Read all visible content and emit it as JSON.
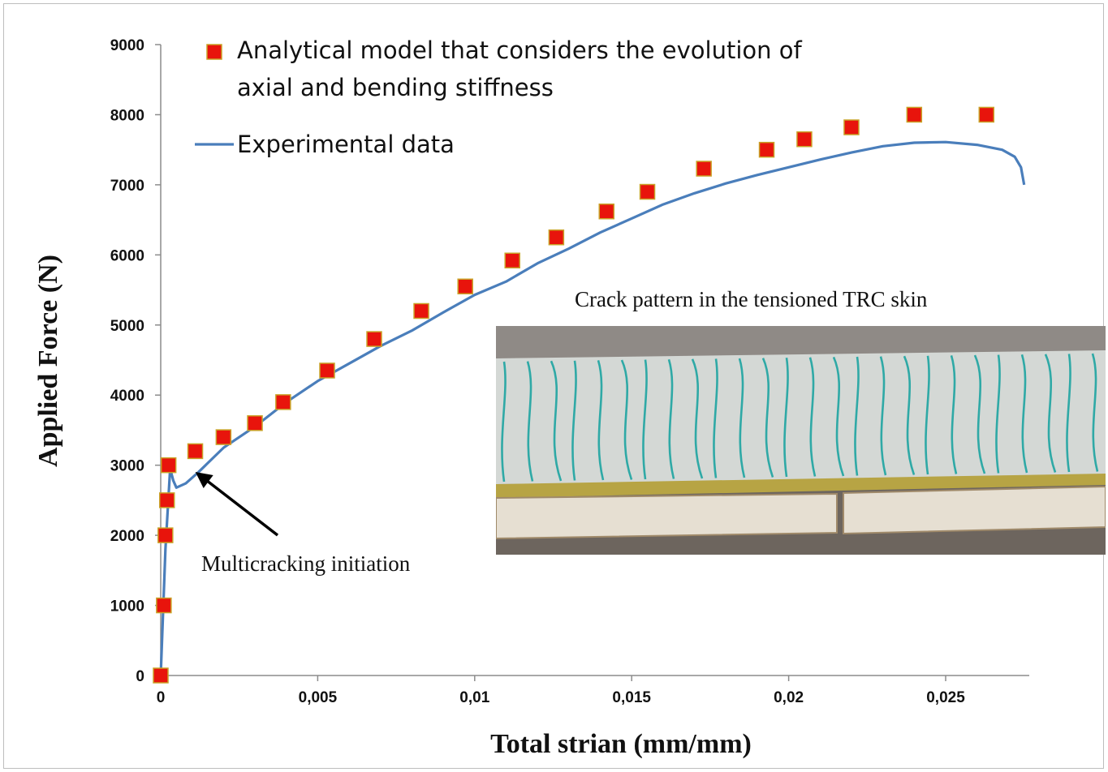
{
  "chart_data": {
    "type": "scatter",
    "xlabel": "Total strian (mm/mm)",
    "ylabel": "Applied Force (N)",
    "xlim": [
      0,
      0.028
    ],
    "ylim": [
      0,
      9000
    ],
    "x_ticks": [
      "0",
      "0,005",
      "0,01",
      "0,015",
      "0,02",
      "0,025"
    ],
    "x_tick_values": [
      0,
      0.005,
      0.01,
      0.015,
      0.02,
      0.025
    ],
    "y_ticks": [
      "0",
      "1000",
      "2000",
      "3000",
      "4000",
      "5000",
      "6000",
      "7000",
      "8000",
      "9000"
    ],
    "y_tick_values": [
      0,
      1000,
      2000,
      3000,
      4000,
      5000,
      6000,
      7000,
      8000,
      9000
    ],
    "grid": false,
    "legend_position": "top-left",
    "series": [
      {
        "name": "Analytical model that considers the evolution of axial and bending stiffness",
        "name_lines": [
          "Analytical model that considers the evolution of",
          "axial and bending stiffness"
        ],
        "style": "markers",
        "marker": "square",
        "color": "#e8140c",
        "edge_color": "#c9a227",
        "x": [
          0.0,
          0.0001,
          0.00015,
          0.0002,
          0.00025,
          0.0011,
          0.002,
          0.003,
          0.0039,
          0.0053,
          0.0068,
          0.0083,
          0.0097,
          0.0112,
          0.0126,
          0.0142,
          0.0155,
          0.0173,
          0.0193,
          0.0205,
          0.022,
          0.024,
          0.0263
        ],
        "y": [
          0,
          1000,
          2000,
          2500,
          3000,
          3200,
          3400,
          3600,
          3900,
          4350,
          4800,
          5200,
          5550,
          5920,
          6250,
          6620,
          6900,
          7230,
          7500,
          7650,
          7820,
          8000,
          8000
        ]
      },
      {
        "name": "Experimental data",
        "style": "line",
        "color": "#4a7ebb",
        "x": [
          0.0,
          0.00015,
          0.0003,
          0.0004,
          0.0005,
          0.0008,
          0.0012,
          0.002,
          0.003,
          0.004,
          0.005,
          0.006,
          0.007,
          0.008,
          0.009,
          0.01,
          0.011,
          0.012,
          0.013,
          0.014,
          0.015,
          0.016,
          0.017,
          0.018,
          0.019,
          0.02,
          0.021,
          0.022,
          0.023,
          0.024,
          0.025,
          0.026,
          0.0268,
          0.0272,
          0.0274,
          0.0275
        ],
        "y": [
          0,
          1800,
          2950,
          2780,
          2680,
          2740,
          2900,
          3250,
          3550,
          3900,
          4200,
          4450,
          4700,
          4920,
          5180,
          5430,
          5620,
          5880,
          6090,
          6320,
          6520,
          6720,
          6880,
          7020,
          7140,
          7250,
          7360,
          7460,
          7550,
          7600,
          7610,
          7570,
          7500,
          7400,
          7250,
          7000
        ]
      }
    ],
    "annotations": [
      {
        "text": "Multicracking initiation",
        "arrow_to": {
          "x": 0.001,
          "y": 2950
        }
      },
      {
        "text": "Crack pattern in the tensioned TRC skin"
      }
    ]
  },
  "inset_photo": {
    "description_icon": "concrete-beam-photo",
    "colors": {
      "sky": "#8f8a86",
      "slab": "#d4d8d5",
      "crack": "#2fa9a6",
      "edge": "#b7a444",
      "board": "#e6dfd2",
      "ground": "#6d655e"
    }
  }
}
